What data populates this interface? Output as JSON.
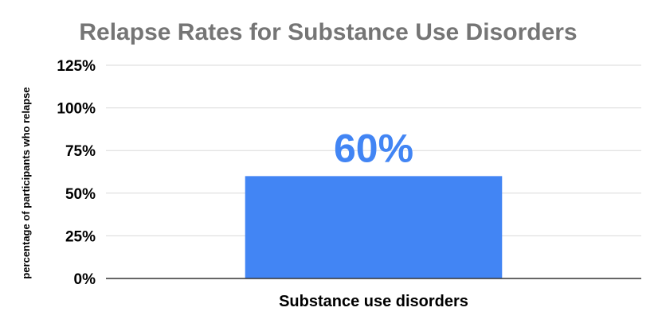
{
  "chart_data": {
    "type": "bar",
    "title": "Relapse Rates for Substance Use Disorders",
    "xlabel": "",
    "ylabel": "percentage of participants who relapse",
    "categories": [
      "Substance use disorders"
    ],
    "values": [
      60
    ],
    "data_labels": [
      "60%"
    ],
    "y_ticks": [
      "0%",
      "25%",
      "50%",
      "75%",
      "100%",
      "125%"
    ],
    "y_tick_values": [
      0,
      25,
      50,
      75,
      100,
      125
    ],
    "ylim": [
      0,
      125
    ],
    "grid": true,
    "legend": "none",
    "colors": {
      "bar": "#4285f4",
      "data_label": "#4285f4",
      "grid": "#d9d9d9",
      "baseline": "#333333",
      "title": "#757575"
    }
  }
}
